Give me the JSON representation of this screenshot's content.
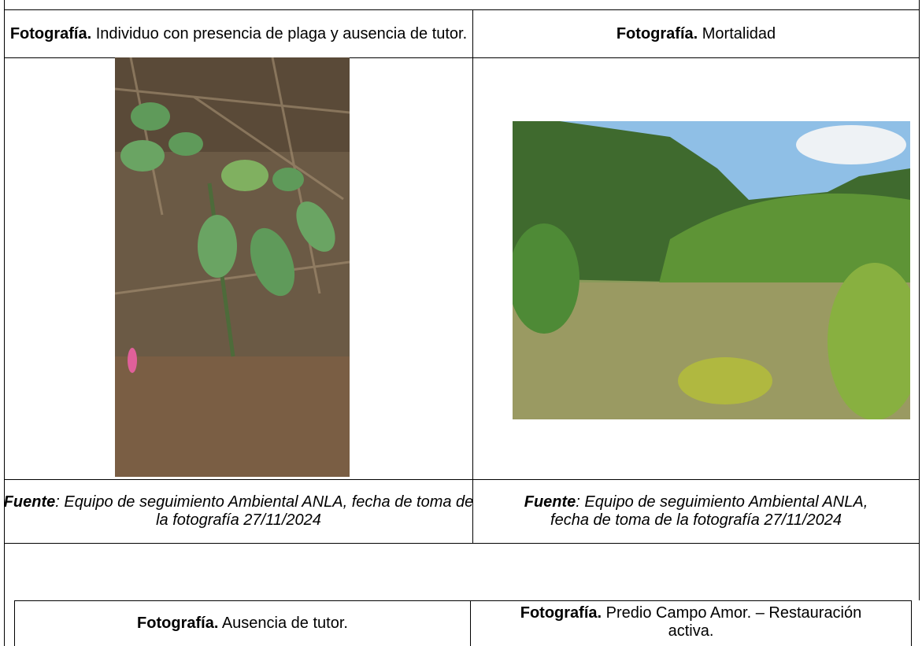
{
  "table1": {
    "rows": [
      [
        {
          "label": "Fotografía.",
          "text": "Individuo con presencia de plaga y ausencia de tutor."
        },
        {
          "label": "Fotografía.",
          "text": "Mortalidad"
        }
      ],
      [
        {
          "label": "Fuente",
          "text": ": Equipo de seguimiento Ambiental ANLA, fecha de toma de la fotografía 27/11/2024"
        },
        {
          "label": "Fuente",
          "text": ": Equipo de seguimiento Ambiental ANLA, fecha de toma de la fotografía 27/11/2024"
        }
      ]
    ]
  },
  "table2": {
    "rows": [
      [
        {
          "label": "Fotografía.",
          "text": "Ausencia de tutor."
        },
        {
          "label": "Fotografía.",
          "text": "Predio Campo Amor. – Restauración activa."
        }
      ]
    ]
  }
}
